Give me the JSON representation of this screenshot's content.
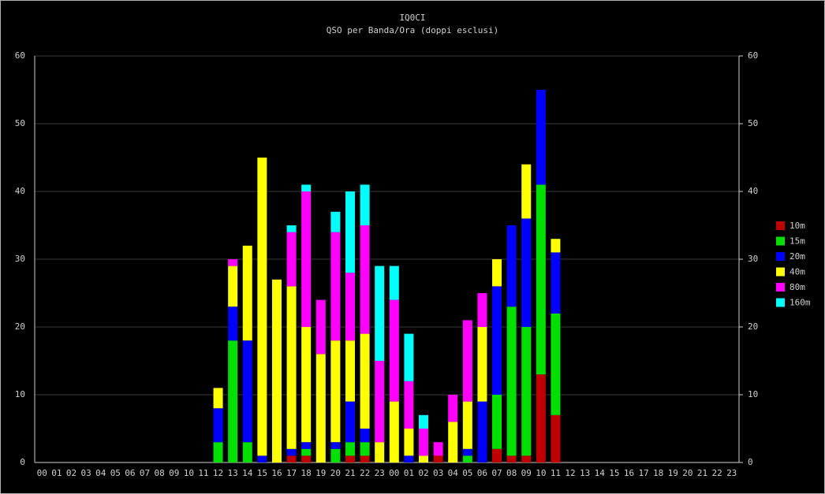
{
  "chart_data": {
    "type": "stacked-bar",
    "title": "IQ0CI",
    "subtitle": "QSO per Banda/Ora (doppi esclusi)",
    "categories": [
      "00",
      "01",
      "02",
      "03",
      "04",
      "05",
      "06",
      "07",
      "08",
      "09",
      "10",
      "11",
      "12",
      "13",
      "14",
      "15",
      "16",
      "17",
      "18",
      "19",
      "20",
      "21",
      "22",
      "23",
      "00",
      "01",
      "02",
      "03",
      "04",
      "05",
      "06",
      "07",
      "08",
      "09",
      "10",
      "11",
      "12",
      "13",
      "14",
      "15",
      "16",
      "17",
      "18",
      "19",
      "20",
      "21",
      "22",
      "23"
    ],
    "series": [
      {
        "name": "10m",
        "color": "#c00000",
        "values": [
          0,
          0,
          0,
          0,
          0,
          0,
          0,
          0,
          0,
          0,
          0,
          0,
          0,
          0,
          0,
          0,
          0,
          1,
          1,
          0,
          0,
          1,
          1,
          0,
          0,
          0,
          0,
          1,
          0,
          0,
          0,
          2,
          1,
          1,
          13,
          7,
          0,
          0,
          0,
          0,
          0,
          0,
          0,
          0,
          0,
          0,
          0,
          0
        ]
      },
      {
        "name": "15m",
        "color": "#00e000",
        "values": [
          0,
          0,
          0,
          0,
          0,
          0,
          0,
          0,
          0,
          0,
          0,
          0,
          3,
          18,
          3,
          0,
          0,
          0,
          1,
          0,
          2,
          2,
          2,
          0,
          0,
          0,
          0,
          0,
          0,
          1,
          0,
          8,
          22,
          19,
          28,
          15,
          0,
          0,
          0,
          0,
          0,
          0,
          0,
          0,
          0,
          0,
          0,
          0
        ]
      },
      {
        "name": "20m",
        "color": "#0000ff",
        "values": [
          0,
          0,
          0,
          0,
          0,
          0,
          0,
          0,
          0,
          0,
          0,
          0,
          5,
          5,
          15,
          1,
          0,
          1,
          1,
          0,
          1,
          6,
          2,
          0,
          0,
          1,
          0,
          0,
          0,
          1,
          9,
          16,
          12,
          16,
          14,
          9,
          0,
          0,
          0,
          0,
          0,
          0,
          0,
          0,
          0,
          0,
          0,
          0
        ]
      },
      {
        "name": "40m",
        "color": "#ffff00",
        "values": [
          0,
          0,
          0,
          0,
          0,
          0,
          0,
          0,
          0,
          0,
          0,
          0,
          3,
          6,
          14,
          44,
          27,
          24,
          17,
          16,
          15,
          9,
          14,
          3,
          9,
          4,
          1,
          0,
          6,
          7,
          11,
          4,
          0,
          8,
          0,
          2,
          0,
          0,
          0,
          0,
          0,
          0,
          0,
          0,
          0,
          0,
          0,
          0
        ]
      },
      {
        "name": "80m",
        "color": "#ff00ff",
        "values": [
          0,
          0,
          0,
          0,
          0,
          0,
          0,
          0,
          0,
          0,
          0,
          0,
          0,
          1,
          0,
          0,
          0,
          8,
          20,
          8,
          16,
          10,
          16,
          12,
          15,
          7,
          4,
          2,
          4,
          12,
          5,
          0,
          0,
          0,
          0,
          0,
          0,
          0,
          0,
          0,
          0,
          0,
          0,
          0,
          0,
          0,
          0,
          0
        ]
      },
      {
        "name": "160m",
        "color": "#00ffff",
        "values": [
          0,
          0,
          0,
          0,
          0,
          0,
          0,
          0,
          0,
          0,
          0,
          0,
          0,
          0,
          0,
          0,
          0,
          1,
          1,
          0,
          3,
          12,
          6,
          14,
          5,
          7,
          2,
          0,
          0,
          0,
          0,
          0,
          0,
          0,
          0,
          0,
          0,
          0,
          0,
          0,
          0,
          0,
          0,
          0,
          0,
          0,
          0,
          0
        ]
      }
    ],
    "ylim": [
      0,
      60
    ],
    "yticks": [
      0,
      10,
      20,
      30,
      40,
      50,
      60
    ],
    "y2lim": [
      0,
      60
    ],
    "y2ticks": [
      0,
      10,
      20,
      30,
      40,
      50,
      60
    ],
    "grid": true,
    "legend": "right"
  }
}
